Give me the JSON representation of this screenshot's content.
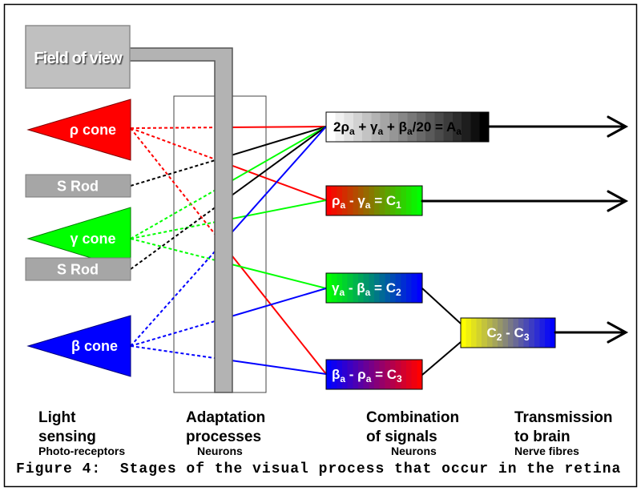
{
  "field_of_view": {
    "label": "Field of view"
  },
  "photoreceptors": {
    "rho_cone": {
      "label": "ρ cone",
      "color": "#ff0000"
    },
    "s_rod_1": {
      "label": "S Rod",
      "color": "#a6a6a6"
    },
    "gamma_cone": {
      "label": "γ cone",
      "color": "#00ff00"
    },
    "s_rod_2": {
      "label": "S Rod",
      "color": "#a6a6a6"
    },
    "beta_cone": {
      "label": "β cone",
      "color": "#0000ff"
    }
  },
  "signals": {
    "achromatic": {
      "formula": [
        {
          "t": "2ρ"
        },
        {
          "t": "a",
          "sub": true
        },
        {
          "t": " + γ"
        },
        {
          "t": "a",
          "sub": true
        },
        {
          "t": " + β"
        },
        {
          "t": "a",
          "sub": true
        },
        {
          "t": "/20 = A"
        },
        {
          "t": "a",
          "sub": true
        }
      ],
      "gradient": [
        "#ffffff",
        "#000000"
      ]
    },
    "c1": {
      "formula": [
        {
          "t": "ρ"
        },
        {
          "t": "a",
          "sub": true
        },
        {
          "t": " - γ"
        },
        {
          "t": "a",
          "sub": true
        },
        {
          "t": " = C"
        },
        {
          "t": "1",
          "sub": true
        }
      ],
      "gradient": [
        "#ff0000",
        "#00ff00"
      ]
    },
    "c2": {
      "formula": [
        {
          "t": "γ"
        },
        {
          "t": "a",
          "sub": true
        },
        {
          "t": " - β"
        },
        {
          "t": "a",
          "sub": true
        },
        {
          "t": " = C"
        },
        {
          "t": "2",
          "sub": true
        }
      ],
      "gradient": [
        "#00ff00",
        "#0000ff"
      ]
    },
    "c3": {
      "formula": [
        {
          "t": "β"
        },
        {
          "t": "a",
          "sub": true
        },
        {
          "t": " - ρ"
        },
        {
          "t": "a",
          "sub": true
        },
        {
          "t": " = C"
        },
        {
          "t": "3",
          "sub": true
        }
      ],
      "gradient": [
        "#0000ff",
        "#ff0000"
      ]
    },
    "c2_minus_c3": {
      "formula": [
        {
          "t": "C"
        },
        {
          "t": "2",
          "sub": true
        },
        {
          "t": " - C"
        },
        {
          "t": "3",
          "sub": true
        }
      ],
      "gradient": [
        "#ffff00",
        "#0000ff"
      ]
    }
  },
  "stages": {
    "light_sensing": {
      "line1": "Light",
      "line2": "sensing",
      "subtitle": "Photo-receptors"
    },
    "adaptation": {
      "line1": "Adaptation",
      "line2": "processes",
      "subtitle": "Neurons"
    },
    "combination": {
      "line1": "Combination",
      "line2": "of signals",
      "subtitle": "Neurons"
    },
    "transmission": {
      "line1": "Transmission",
      "line2": "to brain",
      "subtitle": "Nerve fibres"
    }
  },
  "caption": "Figure 4:  Stages of the visual process that occur in the retina"
}
